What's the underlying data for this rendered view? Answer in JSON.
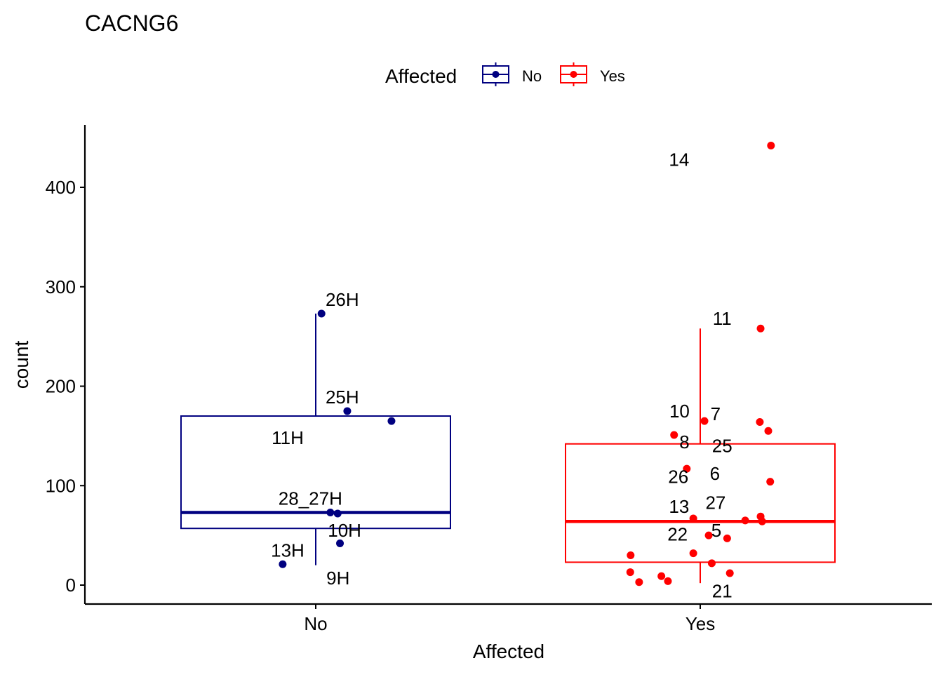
{
  "chart_data": {
    "type": "box",
    "title": "CACNG6",
    "xlabel": "Affected",
    "ylabel": "count",
    "ylim": [
      -20,
      462
    ],
    "yticks": [
      0,
      100,
      200,
      300,
      400
    ],
    "grid": false,
    "legend": {
      "title": "Affected",
      "placement": "top",
      "entries": [
        "No",
        "Yes"
      ]
    },
    "categories": [
      "No",
      "Yes"
    ],
    "colors": {
      "No": "#000080",
      "Yes": "#FF0000"
    },
    "boxes": [
      {
        "category": "No",
        "min": 20,
        "q1": 57,
        "median": 73,
        "q3": 170,
        "max": 273
      },
      {
        "category": "Yes",
        "min": 2,
        "q1": 23,
        "median": 64,
        "q3": 142,
        "max": 258
      }
    ],
    "points": [
      {
        "category": "No",
        "jitter": 0.015,
        "y": 273
      },
      {
        "category": "No",
        "jitter": 0.082,
        "y": 175
      },
      {
        "category": "No",
        "jitter": 0.197,
        "y": 165
      },
      {
        "category": "No",
        "jitter": 0.038,
        "y": 73
      },
      {
        "category": "No",
        "jitter": 0.057,
        "y": 72
      },
      {
        "category": "No",
        "jitter": 0.063,
        "y": 42
      },
      {
        "category": "No",
        "jitter": -0.086,
        "y": 21
      },
      {
        "category": "Yes",
        "jitter": 0.184,
        "y": 442
      },
      {
        "category": "Yes",
        "jitter": 0.157,
        "y": 258
      },
      {
        "category": "Yes",
        "jitter": 0.011,
        "y": 165
      },
      {
        "category": "Yes",
        "jitter": 0.155,
        "y": 164
      },
      {
        "category": "Yes",
        "jitter": 0.177,
        "y": 155
      },
      {
        "category": "Yes",
        "jitter": -0.068,
        "y": 151
      },
      {
        "category": "Yes",
        "jitter": -0.035,
        "y": 117
      },
      {
        "category": "Yes",
        "jitter": 0.182,
        "y": 104
      },
      {
        "category": "Yes",
        "jitter": 0.157,
        "y": 69
      },
      {
        "category": "Yes",
        "jitter": -0.018,
        "y": 67
      },
      {
        "category": "Yes",
        "jitter": 0.117,
        "y": 65
      },
      {
        "category": "Yes",
        "jitter": 0.161,
        "y": 64
      },
      {
        "category": "Yes",
        "jitter": 0.022,
        "y": 50
      },
      {
        "category": "Yes",
        "jitter": 0.07,
        "y": 47
      },
      {
        "category": "Yes",
        "jitter": -0.018,
        "y": 32
      },
      {
        "category": "Yes",
        "jitter": -0.181,
        "y": 30
      },
      {
        "category": "Yes",
        "jitter": 0.03,
        "y": 22
      },
      {
        "category": "Yes",
        "jitter": -0.182,
        "y": 13
      },
      {
        "category": "Yes",
        "jitter": 0.077,
        "y": 12
      },
      {
        "category": "Yes",
        "jitter": -0.101,
        "y": 9
      },
      {
        "category": "Yes",
        "jitter": -0.084,
        "y": 4
      },
      {
        "category": "Yes",
        "jitter": -0.159,
        "y": 3
      }
    ],
    "annotations": [
      {
        "category": "No",
        "text": "26H",
        "x": 0.069,
        "y": 287
      },
      {
        "category": "No",
        "text": "25H",
        "x": 0.069,
        "y": 189
      },
      {
        "category": "No",
        "text": "11H",
        "x": -0.073,
        "y": 148
      },
      {
        "category": "No",
        "text": "28_27H",
        "x": -0.014,
        "y": 87
      },
      {
        "category": "No",
        "text": "10H",
        "x": 0.075,
        "y": 55
      },
      {
        "category": "No",
        "text": "13H",
        "x": -0.073,
        "y": 35
      },
      {
        "category": "No",
        "text": "9H",
        "x": 0.058,
        "y": 7
      },
      {
        "category": "Yes",
        "text": "14",
        "x": -0.055,
        "y": 428
      },
      {
        "category": "Yes",
        "text": "11",
        "x": 0.057,
        "y": 268
      },
      {
        "category": "Yes",
        "text": "10",
        "x": -0.054,
        "y": 175
      },
      {
        "category": "Yes",
        "text": "7",
        "x": 0.04,
        "y": 172
      },
      {
        "category": "Yes",
        "text": "8",
        "x": -0.041,
        "y": 144
      },
      {
        "category": "Yes",
        "text": "25",
        "x": 0.057,
        "y": 140
      },
      {
        "category": "Yes",
        "text": "26",
        "x": -0.057,
        "y": 109
      },
      {
        "category": "Yes",
        "text": "6",
        "x": 0.038,
        "y": 112
      },
      {
        "category": "Yes",
        "text": "13",
        "x": -0.055,
        "y": 79
      },
      {
        "category": "Yes",
        "text": "27",
        "x": 0.04,
        "y": 83
      },
      {
        "category": "Yes",
        "text": "22",
        "x": -0.059,
        "y": 51
      },
      {
        "category": "Yes",
        "text": "5",
        "x": 0.042,
        "y": 55
      },
      {
        "category": "Yes",
        "text": "21",
        "x": 0.057,
        "y": -6
      }
    ]
  }
}
